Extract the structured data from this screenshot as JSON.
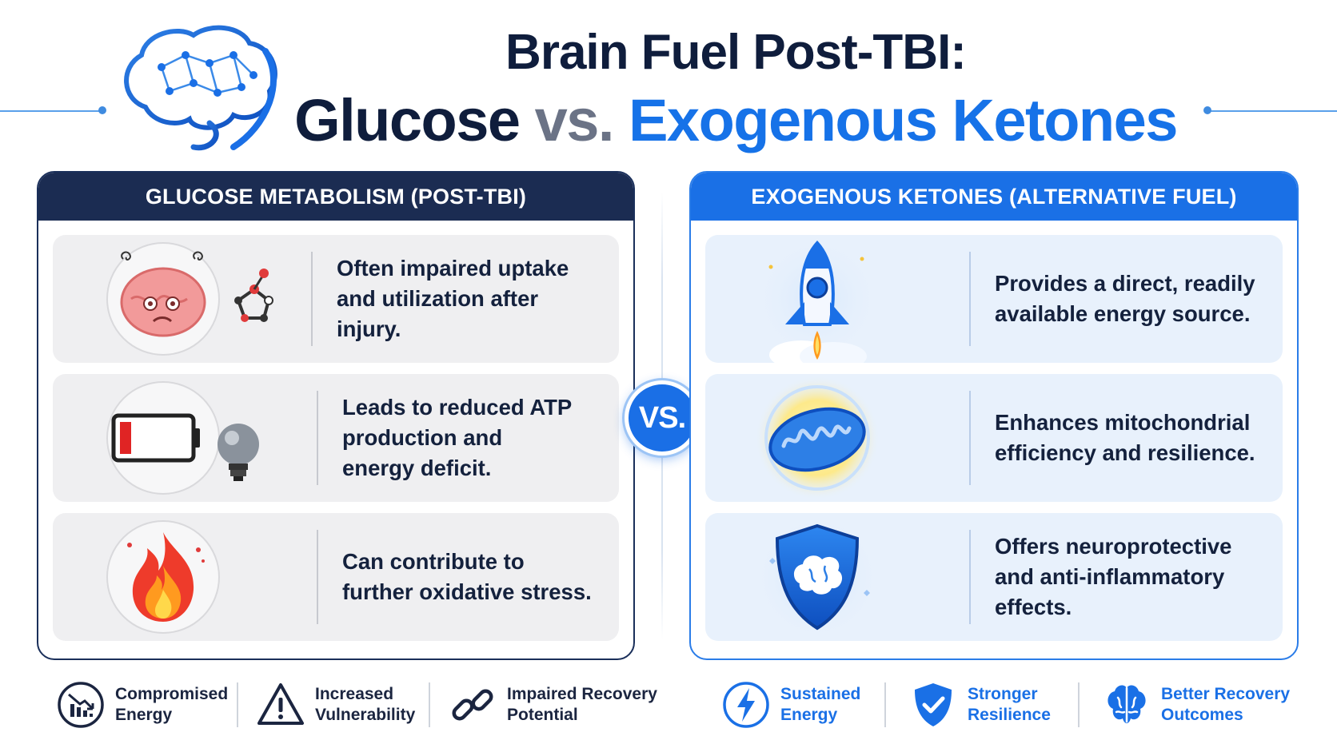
{
  "header": {
    "title_line1": "Brain Fuel Post-TBI:",
    "title_glucose": "Glucose",
    "title_vs": "vs.",
    "title_ketones": "Exogenous Ketones"
  },
  "left_panel": {
    "heading": "GLUCOSE METABOLISM (POST-TBI)",
    "cards": [
      {
        "text": "Often impaired uptake\nand utilization after injury.",
        "icon": "stressed-brain-glucose-molecule-icon"
      },
      {
        "text": "Leads to reduced ATP\nproduction and\nenergy deficit.",
        "icon": "low-battery-lightbulb-icon"
      },
      {
        "text": "Can contribute to\nfurther oxidative stress.",
        "icon": "flame-icon"
      }
    ]
  },
  "right_panel": {
    "heading": "EXOGENOUS KETONES (ALTERNATIVE FUEL)",
    "cards": [
      {
        "text": "Provides a direct, readily\navailable energy source.",
        "icon": "rocket-icon"
      },
      {
        "text": "Enhances mitochondrial\nefficiency and resilience.",
        "icon": "mitochondria-icon"
      },
      {
        "text": "Offers neuroprotective\nand anti-inflammatory\neffects.",
        "icon": "shield-brain-icon"
      }
    ]
  },
  "vs_badge": "VS.",
  "footer": {
    "left": [
      {
        "label": "Compromised\nEnergy",
        "icon": "declining-chart-icon"
      },
      {
        "label": "Increased\nVulnerability",
        "icon": "warning-icon"
      },
      {
        "label": "Impaired Recovery\nPotential",
        "icon": "broken-link-icon"
      }
    ],
    "right": [
      {
        "label": "Sustained\nEnergy",
        "icon": "lightning-icon"
      },
      {
        "label": "Stronger\nResilience",
        "icon": "shield-check-icon"
      },
      {
        "label": "Better Recovery\nOutcomes",
        "icon": "brain-icon"
      }
    ]
  },
  "colors": {
    "navy": "#1b2c52",
    "blue": "#1a70e6",
    "left_card_bg": "#efeff1",
    "right_card_bg": "#e8f1fc"
  }
}
